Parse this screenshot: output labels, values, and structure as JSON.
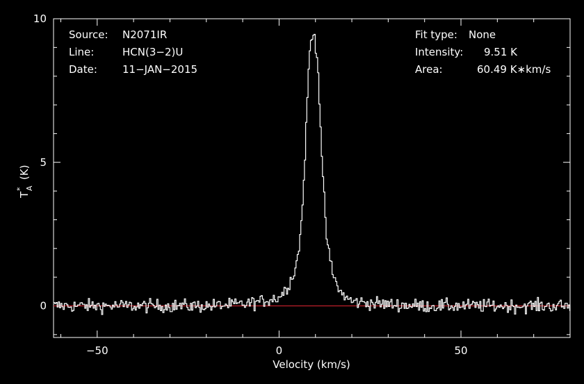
{
  "chart_data": {
    "type": "line",
    "xlabel": "Velocity (km/s)",
    "ylabel_main": "T",
    "ylabel_sup": "*",
    "ylabel_sub": "A",
    "ylabel_unit": "(K)",
    "xlim": [
      -62,
      80
    ],
    "ylim": [
      -1.1,
      10
    ],
    "xticks": [
      -50,
      0,
      50
    ],
    "yticks": [
      0,
      5,
      10
    ],
    "xtick_labels": [
      "−50",
      "0",
      "50"
    ],
    "ytick_labels": [
      "0",
      "5",
      "10"
    ],
    "baseline": 0,
    "series": [
      {
        "line_color": "#ffffff",
        "x": [
          -62,
          -50,
          -40,
          -30,
          -20,
          -10,
          -5,
          0,
          2,
          4,
          5,
          6,
          6.5,
          7,
          7.5,
          8,
          8.5,
          9,
          9.5,
          10,
          10.5,
          11,
          11.5,
          12,
          12.5,
          13,
          14,
          15,
          17,
          20,
          30,
          40,
          50,
          60,
          70,
          80
        ],
        "y": [
          0,
          0,
          0,
          0,
          0,
          0.05,
          0.15,
          0.3,
          0.6,
          1.1,
          1.6,
          2.6,
          3.6,
          4.9,
          6.3,
          7.9,
          9.0,
          9.3,
          9.51,
          9.2,
          8.7,
          7.5,
          6.0,
          4.6,
          3.5,
          2.5,
          1.6,
          1.0,
          0.45,
          0.15,
          0.05,
          0,
          0,
          0,
          0,
          0
        ]
      }
    ],
    "baseline_color": "#c0202a"
  },
  "info_left": {
    "source_label": "Source:",
    "source_value": "N2071IR",
    "line_label": "Line:",
    "line_value": "HCN(3−2)U",
    "date_label": "Date:",
    "date_value": "11−JAN−2015"
  },
  "info_right": {
    "fit_label": "Fit type:",
    "fit_value": "None",
    "intensity_label": "Intensity:",
    "intensity_value": "9.51 K",
    "area_label": "Area:",
    "area_value": "60.49 K∗km/s"
  }
}
